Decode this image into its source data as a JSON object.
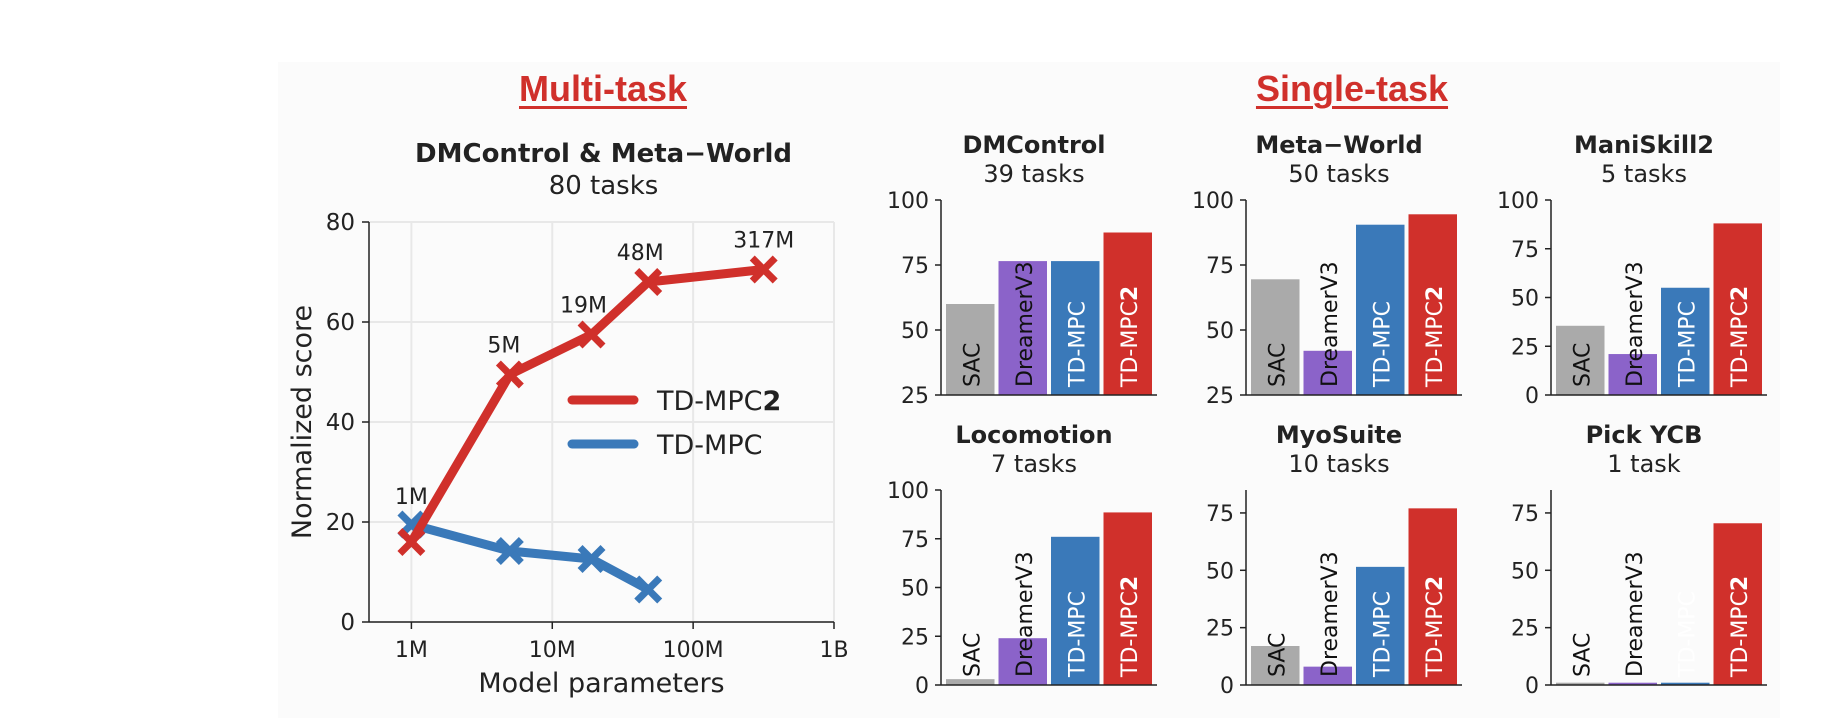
{
  "headings": {
    "multi": "Multi-task",
    "single": "Single-task"
  },
  "colors": {
    "heading": "#d0302b",
    "tdmpc2": "#d0302b",
    "tdmpc": "#3a79b9",
    "sac": "#aaaaaa",
    "dreamer": "#8b63c9",
    "grid": "#e8e8e8",
    "axis": "#222222",
    "text": "#222222"
  },
  "chart_data": [
    {
      "type": "line",
      "title": "DMControl & Meta−World",
      "subtitle": "80 tasks",
      "xlabel": "Model parameters",
      "ylabel": "Normalized score",
      "xscale": "log",
      "xlim": [
        500000,
        1000000000
      ],
      "ylim": [
        0,
        80
      ],
      "xticks": [
        1000000,
        10000000,
        100000000,
        1000000000
      ],
      "xtick_labels": [
        "1M",
        "10M",
        "100M",
        "1B"
      ],
      "yticks": [
        0,
        20,
        40,
        60,
        80
      ],
      "grid": true,
      "legend": "center-right",
      "series": [
        {
          "name": "TD-MPC2",
          "name_plain": "TD-MPC",
          "name_bold": "2",
          "color": "#d0302b",
          "x": [
            1000000,
            5000000,
            19000000,
            48000000,
            317000000
          ],
          "y": [
            16,
            49.5,
            57.5,
            68,
            70.5
          ],
          "point_labels": [
            "1M",
            "5M",
            "19M",
            "48M",
            "317M"
          ]
        },
        {
          "name": "TD-MPC",
          "color": "#3a79b9",
          "x": [
            1000000,
            5000000,
            19000000,
            48000000
          ],
          "y": [
            19.5,
            14.2,
            12.6,
            6.5
          ]
        }
      ]
    },
    {
      "type": "bar",
      "title": "DMControl",
      "subtitle": "39 tasks",
      "categories": [
        "SAC",
        "DreamerV3",
        "TD-MPC",
        "TD-MPC2"
      ],
      "values": [
        60,
        76.5,
        76.5,
        87.5
      ],
      "ylim": [
        25,
        100
      ],
      "yticks": [
        25,
        50,
        75,
        100
      ]
    },
    {
      "type": "bar",
      "title": "Meta−World",
      "subtitle": "50 tasks",
      "categories": [
        "SAC",
        "DreamerV3",
        "TD-MPC",
        "TD-MPC2"
      ],
      "values": [
        69.5,
        42,
        90.5,
        94.5
      ],
      "ylim": [
        25,
        100
      ],
      "yticks": [
        25,
        50,
        75,
        100
      ]
    },
    {
      "type": "bar",
      "title": "ManiSkill2",
      "subtitle": "5 tasks",
      "categories": [
        "SAC",
        "DreamerV3",
        "TD-MPC",
        "TD-MPC2"
      ],
      "values": [
        35.5,
        21,
        55,
        88
      ],
      "ylim": [
        0,
        100
      ],
      "yticks": [
        0,
        25,
        50,
        75,
        100
      ]
    },
    {
      "type": "bar",
      "title": "Locomotion",
      "subtitle": "7 tasks",
      "categories": [
        "SAC",
        "DreamerV3",
        "TD-MPC",
        "TD-MPC2"
      ],
      "values": [
        3,
        24,
        76,
        88.5
      ],
      "ylim": [
        0,
        100
      ],
      "yticks": [
        0,
        25,
        50,
        75,
        100
      ]
    },
    {
      "type": "bar",
      "title": "MyoSuite",
      "subtitle": "10 tasks",
      "categories": [
        "SAC",
        "DreamerV3",
        "TD-MPC",
        "TD-MPC2"
      ],
      "values": [
        17,
        8,
        51.5,
        77
      ],
      "ylim": [
        0,
        85
      ],
      "yticks": [
        0,
        25,
        50,
        75
      ]
    },
    {
      "type": "bar",
      "title": "Pick YCB",
      "subtitle": "1 task",
      "categories": [
        "SAC",
        "DreamerV3",
        "TD-MPC",
        "TD-MPC2"
      ],
      "values": [
        1,
        1,
        1,
        70.5
      ],
      "ylim": [
        0,
        85
      ],
      "yticks": [
        0,
        25,
        50,
        75
      ]
    }
  ]
}
